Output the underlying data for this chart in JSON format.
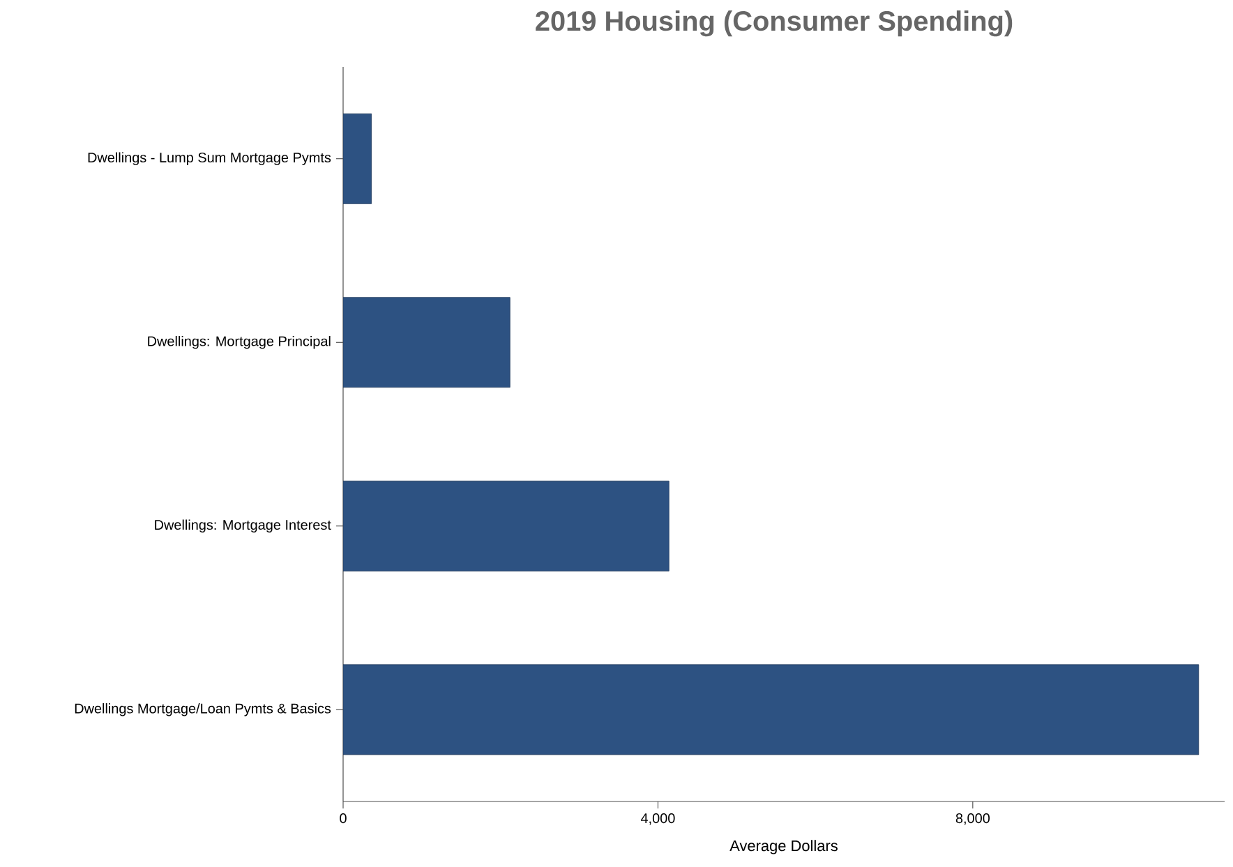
{
  "chart_data": {
    "type": "bar",
    "orientation": "horizontal",
    "title": "2019 Housing (Consumer Spending)",
    "xlabel": "Average Dollars",
    "categories": [
      "Dwellings - Lump Sum Mortgage Pymts",
      "Dwellings: Mortgage Principal",
      "Dwellings: Mortgage Interest",
      "Dwellings Mortgage/Loan Pymts & Basics"
    ],
    "values": [
      360,
      2120,
      4140,
      10870
    ],
    "color": "#2d5282",
    "xlim": [
      0,
      11200
    ],
    "xticks": [
      0,
      {
        "value": 4000,
        "label": "4,000"
      },
      {
        "value": 8000,
        "label": "8,000"
      }
    ]
  }
}
